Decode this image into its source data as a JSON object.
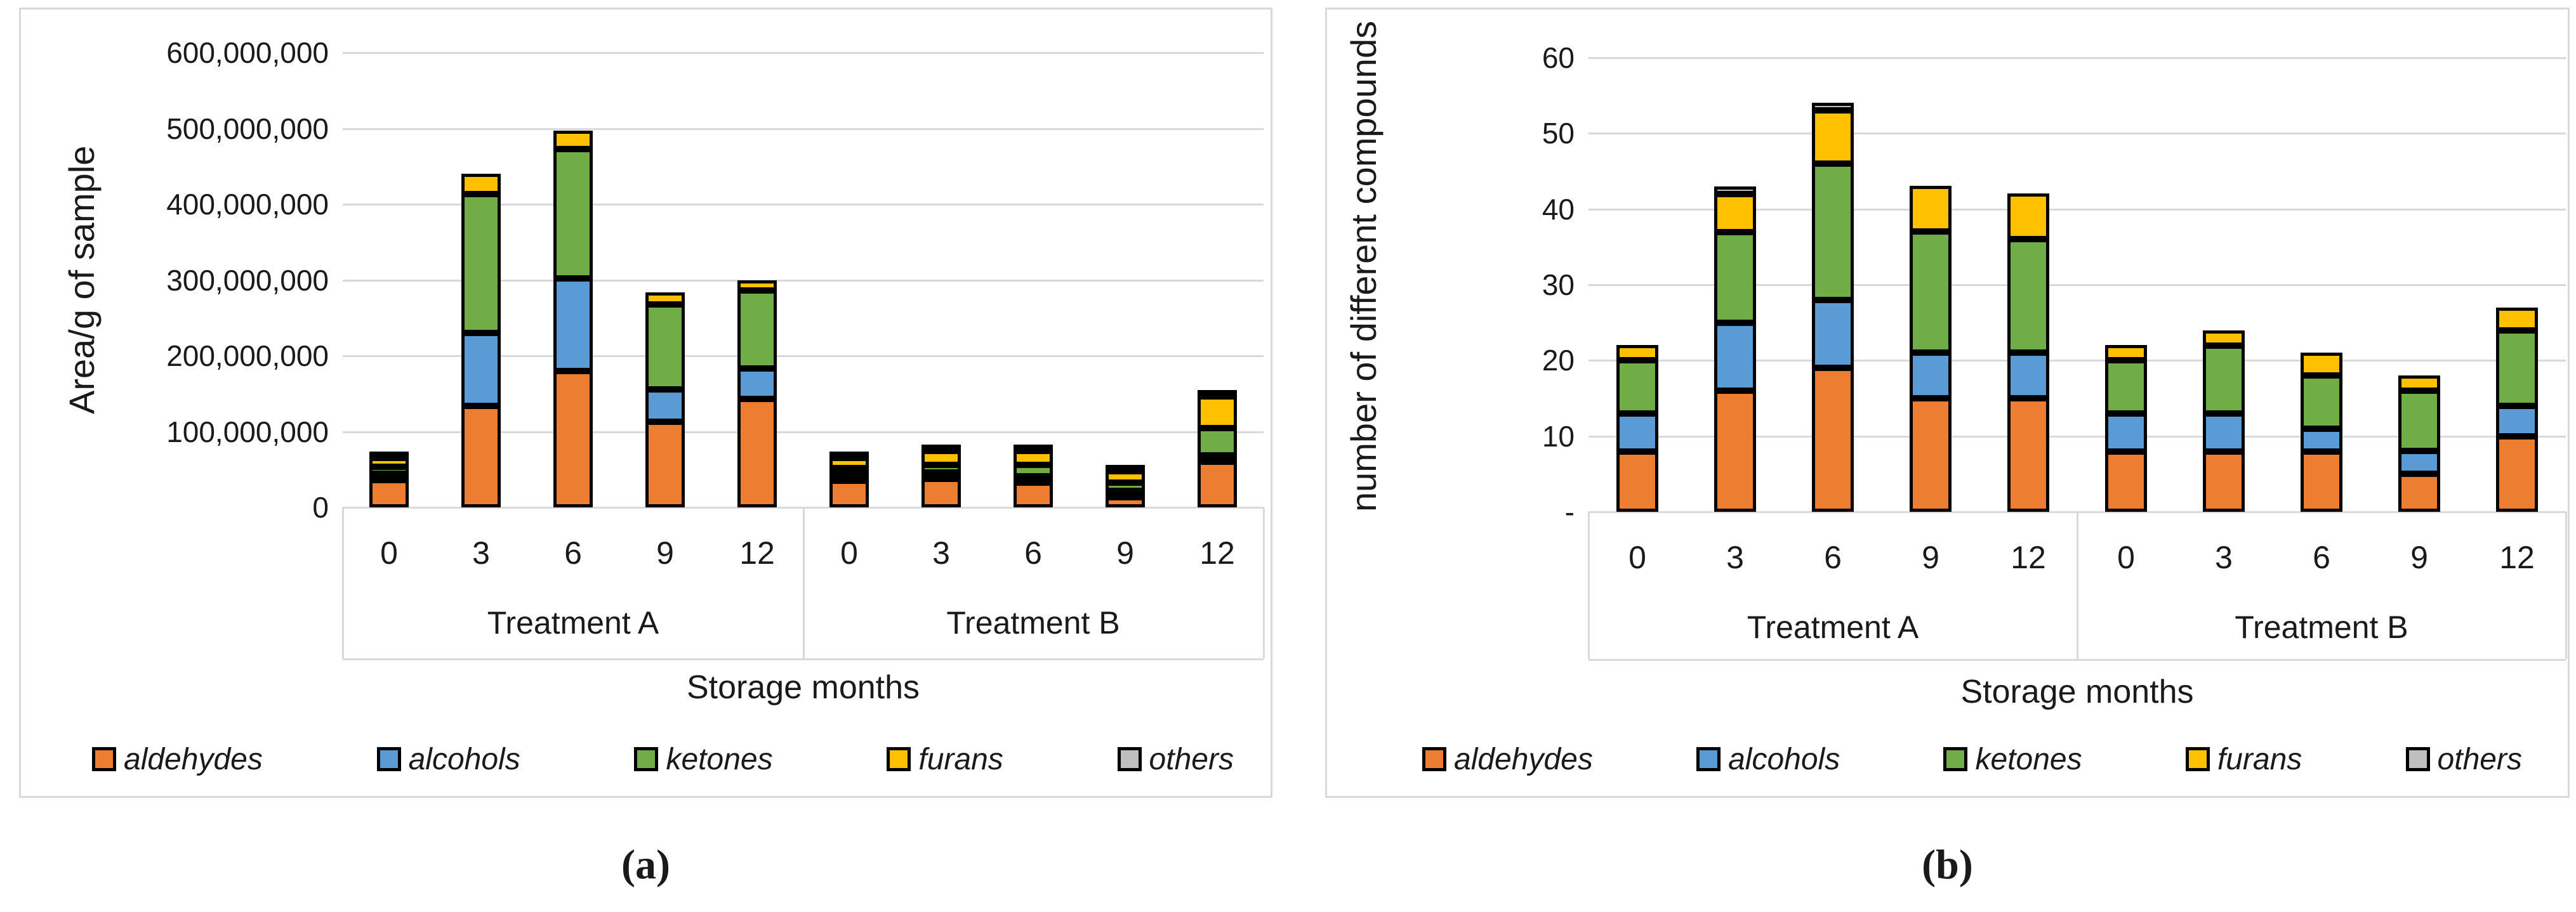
{
  "figure": {
    "captions": {
      "a": "(a)",
      "b": "(b)"
    }
  },
  "colors": {
    "aldehydes": "#ED7D31",
    "alcohols": "#5B9BD5",
    "ketones": "#70AD47",
    "furans": "#FFC000",
    "others": "#BFBFBF",
    "gridline": "#D9D9D9",
    "bar_outline": "#000000",
    "panel_border": "#D9D9D9"
  },
  "chart_data": [
    {
      "type": "bar",
      "stacked": true,
      "ylabel": "Area/g of sample",
      "xlabel": "Storage months",
      "ylim": [
        0,
        600000000
      ],
      "grid": true,
      "legend_position": "bottom",
      "ytick_labels_top_down": [
        "600,000,000",
        "500,000,000",
        "400,000,000",
        "300,000,000",
        "200,000,000",
        "100,000,000",
        "0"
      ],
      "categories": [
        "0",
        "3",
        "6",
        "9",
        "12",
        "0",
        "3",
        "6",
        "9",
        "12"
      ],
      "group_labels": [
        "Treatment A",
        "Treatment B"
      ],
      "series": [
        {
          "name": "aldehydes",
          "color": "#ED7D31",
          "values": [
            36000000,
            134000000,
            180000000,
            113000000,
            143000000,
            35000000,
            38000000,
            33000000,
            13000000,
            60000000
          ]
        },
        {
          "name": "alcohols",
          "color": "#5B9BD5",
          "values": [
            6000000,
            96000000,
            122000000,
            43000000,
            40000000,
            5000000,
            6000000,
            5000000,
            3000000,
            6000000
          ]
        },
        {
          "name": "ketones",
          "color": "#70AD47",
          "values": [
            9000000,
            183000000,
            171000000,
            112000000,
            103000000,
            8000000,
            10000000,
            15000000,
            11000000,
            36000000
          ]
        },
        {
          "name": "furans",
          "color": "#FFC000",
          "values": [
            12000000,
            27000000,
            24000000,
            16000000,
            13000000,
            13000000,
            18000000,
            18000000,
            15000000,
            42000000
          ]
        },
        {
          "name": "others",
          "color": "#BFBFBF",
          "values": [
            3000000,
            0,
            0,
            0,
            0,
            4000000,
            4000000,
            4000000,
            3000000,
            2000000
          ]
        }
      ]
    },
    {
      "type": "bar",
      "stacked": true,
      "ylabel": "number of different compounds",
      "xlabel": "Storage months",
      "ylim": [
        0,
        60
      ],
      "grid": true,
      "legend_position": "bottom",
      "ytick_labels_top_down": [
        "60",
        "50",
        "40",
        "30",
        "20",
        "10",
        "-"
      ],
      "categories": [
        "0",
        "3",
        "6",
        "9",
        "12",
        "0",
        "3",
        "6",
        "9",
        "12"
      ],
      "group_labels": [
        "Treatment A",
        "Treatment B"
      ],
      "series": [
        {
          "name": "aldehydes",
          "color": "#ED7D31",
          "values": [
            8,
            16,
            19,
            15,
            15,
            8,
            8,
            8,
            5,
            10
          ]
        },
        {
          "name": "alcohols",
          "color": "#5B9BD5",
          "values": [
            5,
            9,
            9,
            6,
            6,
            5,
            5,
            3,
            3,
            4
          ]
        },
        {
          "name": "ketones",
          "color": "#70AD47",
          "values": [
            7,
            12,
            18,
            16,
            15,
            7,
            9,
            7,
            8,
            10
          ]
        },
        {
          "name": "furans",
          "color": "#FFC000",
          "values": [
            2,
            5,
            7,
            6,
            6,
            2,
            2,
            3,
            2,
            3
          ]
        },
        {
          "name": "others",
          "color": "#BFBFBF",
          "values": [
            0,
            1,
            1,
            0,
            0,
            0,
            0,
            0,
            0,
            0
          ]
        }
      ]
    }
  ]
}
